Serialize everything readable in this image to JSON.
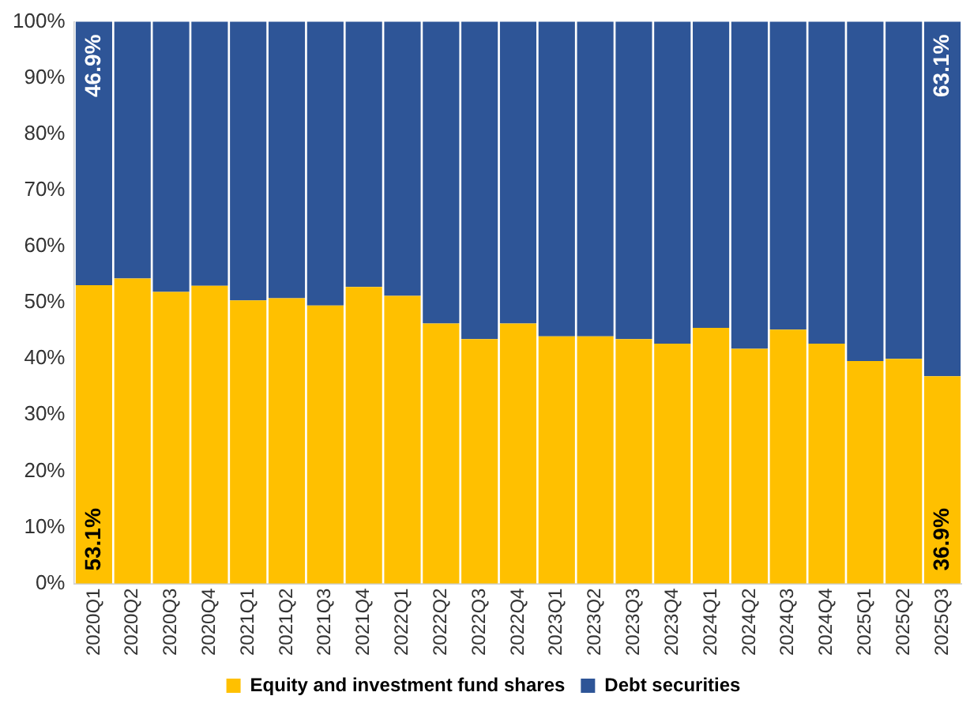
{
  "chart_data": {
    "type": "bar",
    "stacked": true,
    "categories": [
      "2020Q1",
      "2020Q2",
      "2020Q3",
      "2020Q4",
      "2021Q1",
      "2021Q2",
      "2021Q3",
      "2021Q4",
      "2022Q1",
      "2022Q2",
      "2022Q3",
      "2022Q4",
      "2023Q1",
      "2023Q2",
      "2023Q3",
      "2023Q4",
      "2024Q1",
      "2024Q2",
      "2024Q3",
      "2024Q4",
      "2025Q1",
      "2025Q2",
      "2025Q3"
    ],
    "series": [
      {
        "name": "Equity and investment fund shares",
        "color": "#ffc000",
        "values": [
          53.1,
          54.3,
          51.9,
          53.0,
          50.4,
          50.8,
          49.5,
          52.8,
          51.2,
          46.3,
          43.5,
          46.3,
          44.0,
          44.0,
          43.5,
          42.7,
          45.5,
          41.8,
          45.2,
          42.7,
          39.6,
          40.0,
          36.9
        ],
        "value_labels": [
          "53.1%",
          null,
          null,
          null,
          null,
          null,
          null,
          null,
          null,
          null,
          null,
          null,
          null,
          null,
          null,
          null,
          null,
          null,
          null,
          null,
          null,
          null,
          "36.9%"
        ]
      },
      {
        "name": "Debt securities",
        "color": "#2e5597",
        "values": [
          46.9,
          45.7,
          48.1,
          47.0,
          49.6,
          49.2,
          50.5,
          47.2,
          48.8,
          53.7,
          56.5,
          53.7,
          56.0,
          56.0,
          56.5,
          57.3,
          54.5,
          58.2,
          54.8,
          57.3,
          60.4,
          60.0,
          63.1
        ],
        "value_labels": [
          "46.9%",
          null,
          null,
          null,
          null,
          null,
          null,
          null,
          null,
          null,
          null,
          null,
          null,
          null,
          null,
          null,
          null,
          null,
          null,
          null,
          null,
          null,
          "63.1%"
        ]
      }
    ],
    "ylim": [
      0,
      100
    ],
    "yticks": [
      {
        "value": 0,
        "label": "0%"
      },
      {
        "value": 10,
        "label": "10%"
      },
      {
        "value": 20,
        "label": "20%"
      },
      {
        "value": 30,
        "label": "30%"
      },
      {
        "value": 40,
        "label": "40%"
      },
      {
        "value": 50,
        "label": "50%"
      },
      {
        "value": 60,
        "label": "60%"
      },
      {
        "value": 70,
        "label": "70%"
      },
      {
        "value": 80,
        "label": "80%"
      },
      {
        "value": 90,
        "label": "90%"
      },
      {
        "value": 100,
        "label": "100%"
      }
    ],
    "grid": false,
    "legend": "bottom"
  }
}
